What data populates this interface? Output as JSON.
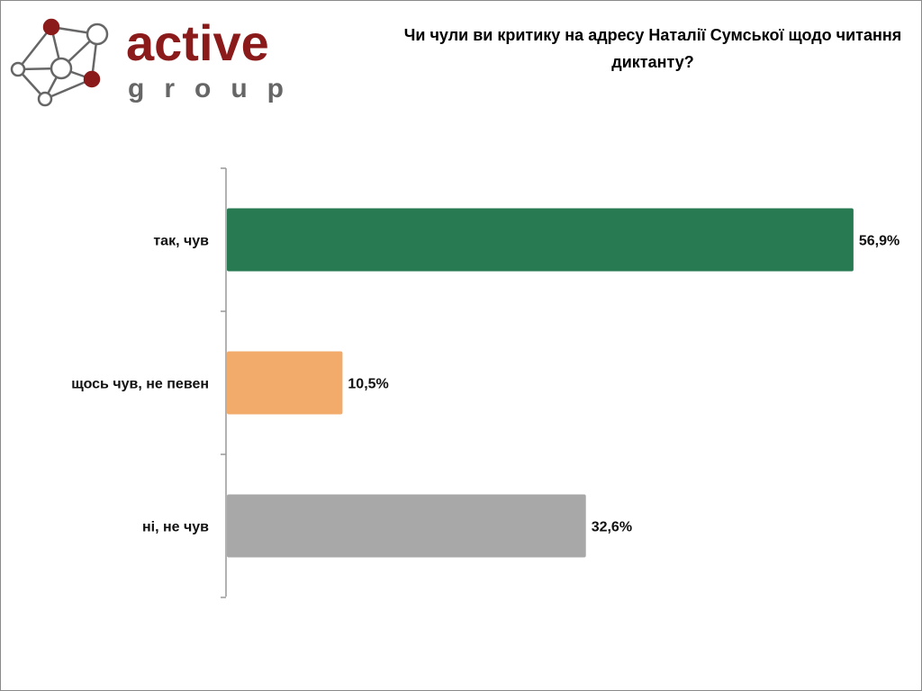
{
  "logo": {
    "name": "active",
    "tagline": "group"
  },
  "chart_data": {
    "type": "bar",
    "orientation": "horizontal",
    "title": "Чи чули ви критику на адресу Наталії Сумської щодо читання диктанту?",
    "categories": [
      "так, чув",
      "щось чув, не певен",
      "ні, не чув"
    ],
    "values": [
      56.9,
      10.5,
      32.6
    ],
    "value_labels": [
      "56,9%",
      "10,5%",
      "32,6%"
    ],
    "colors": [
      "#277a52",
      "#f2ab6a",
      "#a8a8a8"
    ]
  }
}
